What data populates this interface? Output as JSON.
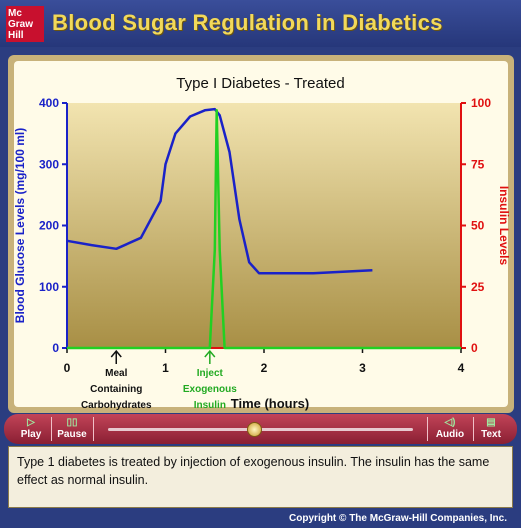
{
  "header": {
    "logo_lines": [
      "Mc",
      "Graw",
      "Hill"
    ],
    "title": "Blood Sugar Regulation in Diabetics"
  },
  "chart_data": {
    "type": "line",
    "title": "Type I Diabetes - Treated",
    "xlabel": "Time (hours)",
    "ylabel_left": "Blood Glucose Levels (mg/100 ml)",
    "ylabel_right": "Insulin Levels",
    "xlim": [
      0,
      4
    ],
    "ylim_left": [
      0,
      400
    ],
    "ylim_right": [
      0,
      100
    ],
    "x_ticks": [
      "0",
      "1",
      "2",
      "3",
      "4"
    ],
    "y_ticks_left": [
      "0",
      "100",
      "200",
      "300",
      "400"
    ],
    "y_ticks_right": [
      "0",
      "25",
      "50",
      "75",
      "100"
    ],
    "series": [
      {
        "axis": "left",
        "color": "#1a22c8",
        "x": [
          0,
          0.25,
          0.5,
          0.75,
          0.95,
          1.0,
          1.1,
          1.25,
          1.4,
          1.5,
          1.55,
          1.65,
          1.75,
          1.85,
          1.95,
          2.5,
          3.1
        ],
        "y": [
          175,
          168,
          162,
          180,
          240,
          300,
          350,
          378,
          388,
          390,
          380,
          320,
          210,
          140,
          122,
          122,
          127
        ]
      },
      {
        "axis": "right",
        "color": "#22d022",
        "x": [
          0,
          1.45,
          1.5,
          1.52,
          1.55,
          1.6,
          4
        ],
        "y": [
          0,
          0,
          40,
          97,
          40,
          0,
          0
        ]
      }
    ],
    "annotations": [
      {
        "x": 0.5,
        "lines": [
          "Meal",
          "Containing",
          "Carbohydrates"
        ],
        "color": "#111111"
      },
      {
        "x": 1.45,
        "lines": [
          "Inject",
          "Exogenous",
          "Insulin"
        ],
        "color": "#22aa22"
      }
    ],
    "colors": {
      "left_axis": "#1a22c8",
      "right_axis": "#e01010",
      "plot_bg_top": "#f2e4b0",
      "plot_bg_bottom": "#a88f45"
    }
  },
  "controls": {
    "play_label": "Play",
    "pause_label": "Pause",
    "audio_label": "Audio",
    "text_label": "Text",
    "progress": 0.48
  },
  "description": "Type 1 diabetes is treated by injection of exogenous insulin. The insulin has the same effect as normal insulin.",
  "footer": {
    "copyright": "Copyright © The McGraw-Hill Companies, Inc."
  }
}
